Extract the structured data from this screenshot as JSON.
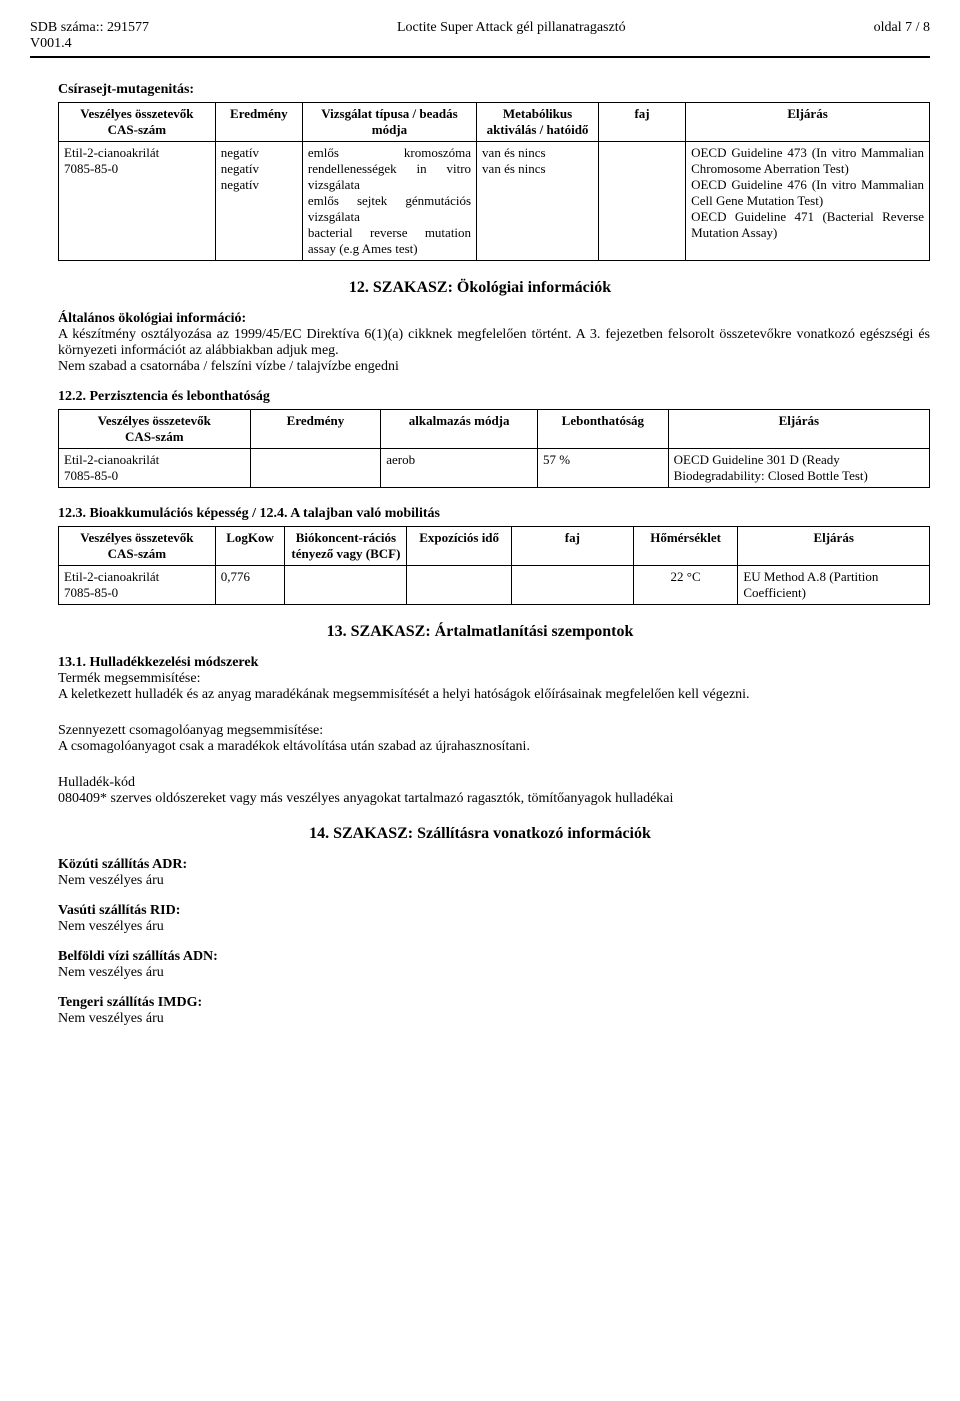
{
  "header": {
    "left_line1": "SDB száma:: 291577",
    "left_line2": "V001.4",
    "center": "Loctite Super Attack gél pillanatragasztó",
    "right": "oldal 7 / 8"
  },
  "mutagen": {
    "title": "Csírasejt-mutagenitás:",
    "headers": {
      "c1": "Veszélyes összetevők\nCAS-szám",
      "c2": "Eredmény",
      "c3": "Vizsgálat típusa / beadás módja",
      "c4": "Metabólikus aktiválás / hatóidő",
      "c5": "faj",
      "c6": "Eljárás"
    },
    "row": {
      "c1": "Etil-2-cianoakrilát\n7085-85-0",
      "c2": "negatív\nnegatív\nnegatív",
      "c3": "emlős kromoszóma rendellenességek in vitro vizsgálata\nemlős sejtek génmutációs vizsgálata\nbacterial reverse mutation assay (e.g Ames test)",
      "c4": "van és nincs\nvan és nincs",
      "c5": "",
      "c6": "OECD Guideline 473 (In vitro Mammalian Chromosome Aberration Test)\nOECD Guideline 476 (In vitro Mammalian Cell Gene Mutation Test)\nOECD Guideline 471 (Bacterial Reverse Mutation Assay)"
    }
  },
  "section12": {
    "title": "12. SZAKASZ: Ökológiai információk",
    "general_heading": "Általános ökológiai információ:",
    "general_text": "A készítmény osztályozása az 1999/45/EC Direktíva 6(1)(a) cikknek megfelelően történt. A 3. fejezetben felsorolt összetevőkre vonatkozó egészségi és környezeti információt az alábbiakban adjuk meg.\nNem szabad a csatornába / felszíni vízbe / talajvízbe engedni",
    "s12_2_heading": "12.2. Perzisztencia és lebonthatóság",
    "table2_headers": {
      "c1": "Veszélyes összetevők\nCAS-szám",
      "c2": "Eredmény",
      "c3": "alkalmazás módja",
      "c4": "Lebonthatóság",
      "c5": "Eljárás"
    },
    "table2_row": {
      "c1": "Etil-2-cianoakrilát\n7085-85-0",
      "c2": "",
      "c3": "aerob",
      "c4": "57 %",
      "c5": "OECD Guideline 301 D (Ready Biodegradability: Closed Bottle Test)"
    },
    "s12_3_heading": "12.3. Bioakkumulációs képesség / 12.4. A talajban való mobilitás",
    "table3_headers": {
      "c1": "Veszélyes összetevők\nCAS-szám",
      "c2": "LogKow",
      "c3": "Biókoncent-rációs tényező vagy (BCF)",
      "c4": "Expozíciós idő",
      "c5": "faj",
      "c6": "Hőmérséklet",
      "c7": "Eljárás"
    },
    "table3_row": {
      "c1": "Etil-2-cianoakrilát\n7085-85-0",
      "c2": "0,776",
      "c3": "",
      "c4": "",
      "c5": "",
      "c6": "22 °C",
      "c7": "EU Method A.8 (Partition Coefficient)"
    }
  },
  "section13": {
    "title": "13. SZAKASZ: Ártalmatlanítási szempontok",
    "s13_1_heading": "13.1. Hulladékkezelési módszerek",
    "prod_label": "Termék megsemmisítése:",
    "prod_text": "A keletkezett hulladék és az anyag maradékának megsemmisítését a helyi hatóságok előírásainak megfelelően kell végezni.",
    "pack_label": "Szennyezett csomagolóanyag megsemmisítése:",
    "pack_text": "A csomagolóanyagot csak a maradékok eltávolítása után szabad az újrahasznosítani.",
    "code_label": "Hulladék-kód",
    "code_text": "080409* szerves oldószereket vagy más veszélyes anyagokat tartalmazó ragasztók, tömítőanyagok hulladékai"
  },
  "section14": {
    "title": "14. SZAKASZ: Szállításra vonatkozó információk",
    "items": [
      {
        "label": "Közúti szállítás ADR:",
        "value": "Nem veszélyes áru"
      },
      {
        "label": "Vasúti szállítás RID:",
        "value": "Nem veszélyes áru"
      },
      {
        "label": "Belföldi vízi szállítás ADN:",
        "value": "Nem veszélyes áru"
      },
      {
        "label": "Tengeri szállítás IMDG:",
        "value": "Nem veszélyes áru"
      }
    ]
  }
}
